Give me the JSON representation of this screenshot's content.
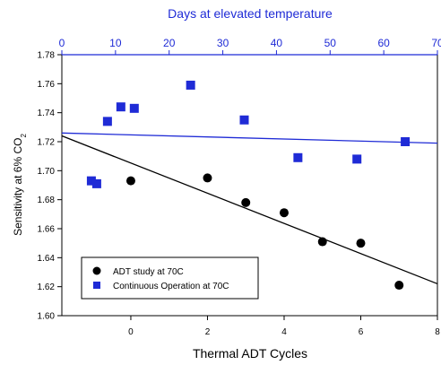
{
  "chart_data": {
    "type": "scatter",
    "title": "",
    "xlabel": "Thermal ADT Cycles",
    "x2label": "Days at elevated temperature",
    "ylabel_main": "Sensitivity at 6% CO",
    "ylabel_sub": "2",
    "xlim": [
      -1.8,
      8
    ],
    "x2lim": [
      0,
      70
    ],
    "ylim": [
      1.6,
      1.78
    ],
    "xticks": [
      "0",
      "2",
      "4",
      "6",
      "8"
    ],
    "xtick_values": [
      0,
      2,
      4,
      6,
      8
    ],
    "x2ticks": [
      "0",
      "10",
      "20",
      "30",
      "40",
      "50",
      "60",
      "70"
    ],
    "x2tick_values": [
      0,
      10,
      20,
      30,
      40,
      50,
      60,
      70
    ],
    "yticks": [
      "1.60",
      "1.62",
      "1.64",
      "1.66",
      "1.68",
      "1.70",
      "1.72",
      "1.74",
      "1.76",
      "1.78"
    ],
    "ytick_values": [
      1.6,
      1.62,
      1.64,
      1.66,
      1.68,
      1.7,
      1.72,
      1.74,
      1.76,
      1.78
    ],
    "grid": false,
    "legend_position": "bottom-left",
    "colors": {
      "adt": "#000000",
      "continuous": "#1f2bd6",
      "trend_blue": "#1f2bd6",
      "trend_black": "#000000"
    },
    "series": [
      {
        "name": "ADT study at 70C",
        "marker": "circle",
        "axis": "bottom",
        "x": [
          0,
          2,
          3,
          4,
          5,
          6,
          7
        ],
        "y": [
          1.693,
          1.695,
          1.678,
          1.671,
          1.651,
          1.65,
          1.621
        ]
      },
      {
        "name": "Continuous Operation at 70C",
        "marker": "square",
        "axis": "top",
        "x": [
          5.5,
          6.5,
          8.5,
          11,
          13.5,
          24,
          34,
          44,
          55,
          64
        ],
        "y": [
          1.693,
          1.691,
          1.734,
          1.744,
          1.743,
          1.759,
          1.735,
          1.709,
          1.708,
          1.72
        ]
      }
    ],
    "trendlines": [
      {
        "series": "ADT study at 70C",
        "axis": "bottom",
        "x": [
          -1.8,
          8
        ],
        "y": [
          1.724,
          1.622
        ]
      },
      {
        "series": "Continuous Operation at 70C",
        "axis": "top",
        "x": [
          0,
          70
        ],
        "y": [
          1.726,
          1.719
        ]
      }
    ]
  }
}
